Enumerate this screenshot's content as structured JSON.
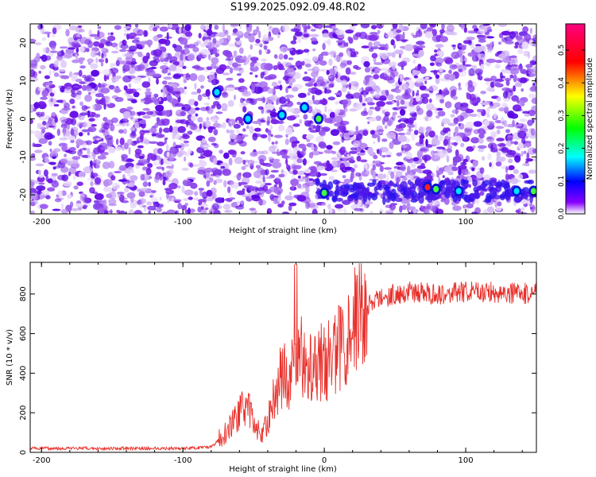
{
  "title": "S199.2025.092.09.48.R02",
  "chart_data": [
    {
      "type": "heatmap",
      "title": "S199.2025.092.09.48.R02",
      "xlabel": "Height of straight line (km)",
      "ylabel": "Frequency (Hz)",
      "xlim": [
        -208,
        150
      ],
      "ylim": [
        -25,
        25
      ],
      "x_ticks": [
        -200,
        -100,
        0,
        100
      ],
      "y_ticks": [
        -20,
        -10,
        0,
        10,
        20
      ],
      "colorbar": {
        "label": "Normalized spectral amplitude",
        "range": [
          0.0,
          0.58
        ],
        "ticks": [
          "0.0",
          "0.1",
          "0.2",
          "0.3",
          "0.4",
          "0.5"
        ],
        "colors": [
          "#ffffff",
          "#8800ff",
          "#0000ff",
          "#00ffff",
          "#00ff00",
          "#ffff00",
          "#ff0000",
          "#ff0080"
        ]
      },
      "background_level": 0.08,
      "features": [
        {
          "x": 0,
          "y": -19.5,
          "amplitude": 0.28
        },
        {
          "x": 73,
          "y": -18.0,
          "amplitude": 0.5
        },
        {
          "x": 79,
          "y": -18.5,
          "amplitude": 0.3
        },
        {
          "x": 136,
          "y": -19.0,
          "amplitude": 0.22
        },
        {
          "x": 148,
          "y": -19.0,
          "amplitude": 0.3
        },
        {
          "x": 95,
          "y": -19.0,
          "amplitude": 0.2
        },
        {
          "x": -76,
          "y": 7.0,
          "amplitude": 0.25
        },
        {
          "x": -54,
          "y": 0.0,
          "amplitude": 0.22
        },
        {
          "x": -30,
          "y": 1.0,
          "amplitude": 0.2
        },
        {
          "x": -14,
          "y": 3.0,
          "amplitude": 0.2
        },
        {
          "x": -4,
          "y": 0.0,
          "amplitude": 0.28
        }
      ]
    },
    {
      "type": "line",
      "xlabel": "Height of straight line (km)",
      "ylabel": "SNR (10 * v/v)",
      "xlim": [
        -208,
        150
      ],
      "ylim": [
        0,
        960
      ],
      "x_ticks": [
        -200,
        -100,
        0,
        100
      ],
      "y_ticks": [
        0,
        200,
        400,
        600,
        800
      ],
      "color": "#e8312c",
      "series": [
        {
          "x": [
            -208,
            -180,
            -150,
            -120,
            -100,
            -80,
            -70,
            -60,
            -55,
            -50,
            -45,
            -40,
            -35,
            -30,
            -25,
            -20,
            -15,
            -10,
            -5,
            0,
            5,
            10,
            15,
            20,
            25,
            30,
            40,
            50,
            60,
            80,
            100,
            120,
            140,
            150
          ],
          "values": [
            20,
            20,
            20,
            20,
            20,
            25,
            100,
            200,
            240,
            150,
            90,
            150,
            300,
            400,
            380,
            420,
            500,
            460,
            470,
            450,
            480,
            520,
            600,
            660,
            700,
            740,
            780,
            800,
            810,
            800,
            810,
            810,
            800,
            810
          ]
        }
      ]
    }
  ]
}
